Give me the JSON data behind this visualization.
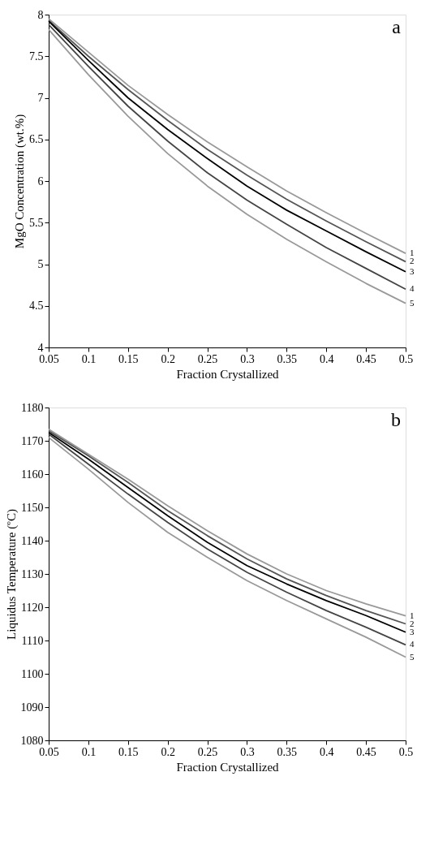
{
  "chart_data": [
    {
      "type": "line",
      "title": "a",
      "xlabel": "Fraction Crystallized",
      "ylabel": "MgO Concentration (wt.%)",
      "x": [
        0.05,
        0.1,
        0.15,
        0.2,
        0.25,
        0.3,
        0.35,
        0.4,
        0.45,
        0.5
      ],
      "series": [
        {
          "name": "1",
          "color": "#999999",
          "values": [
            7.95,
            7.55,
            7.15,
            6.8,
            6.47,
            6.17,
            5.88,
            5.62,
            5.37,
            5.13
          ]
        },
        {
          "name": "2",
          "color": "#555555",
          "values": [
            7.93,
            7.5,
            7.1,
            6.73,
            6.38,
            6.07,
            5.78,
            5.52,
            5.27,
            5.03
          ]
        },
        {
          "name": "3",
          "color": "#000000",
          "values": [
            7.92,
            7.45,
            7.0,
            6.62,
            6.27,
            5.94,
            5.65,
            5.4,
            5.15,
            4.91
          ]
        },
        {
          "name": "4",
          "color": "#444444",
          "values": [
            7.88,
            7.38,
            6.9,
            6.48,
            6.1,
            5.77,
            5.48,
            5.2,
            4.95,
            4.7
          ]
        },
        {
          "name": "5",
          "color": "#999999",
          "values": [
            7.82,
            7.28,
            6.78,
            6.33,
            5.94,
            5.6,
            5.3,
            5.03,
            4.77,
            4.53
          ]
        }
      ],
      "xlim": [
        0.05,
        0.5
      ],
      "xticks": [
        0.05,
        0.1,
        0.15,
        0.2,
        0.25,
        0.3,
        0.35,
        0.4,
        0.45,
        0.5
      ],
      "ylim": [
        4,
        8
      ],
      "yticks": [
        4,
        4.5,
        5,
        5.5,
        6,
        6.5,
        7,
        7.5,
        8
      ],
      "grid": false,
      "legend": false,
      "marker": "none",
      "line_style": "solid"
    },
    {
      "type": "line",
      "title": "b",
      "xlabel": "Fraction Crystallized",
      "ylabel": "Liquidus Temperature (ºC)",
      "x": [
        0.05,
        0.1,
        0.15,
        0.2,
        0.25,
        0.3,
        0.35,
        0.4,
        0.45,
        0.5
      ],
      "series": [
        {
          "name": "1",
          "color": "#999999",
          "values": [
            1173.5,
            1166,
            1158.5,
            1150.5,
            1143,
            1136,
            1130,
            1125,
            1121,
            1117.4
          ]
        },
        {
          "name": "2",
          "color": "#555555",
          "values": [
            1173,
            1165.5,
            1157.5,
            1149,
            1141.5,
            1134.5,
            1128.5,
            1123.5,
            1119,
            1115
          ]
        },
        {
          "name": "3",
          "color": "#000000",
          "values": [
            1172.5,
            1164.5,
            1156,
            1147.5,
            1139.5,
            1132.5,
            1127,
            1122,
            1117.5,
            1112.5
          ]
        },
        {
          "name": "4",
          "color": "#444444",
          "values": [
            1172,
            1163,
            1154,
            1145.5,
            1137.5,
            1130.5,
            1124.5,
            1119,
            1114,
            1108.7
          ]
        },
        {
          "name": "5",
          "color": "#999999",
          "values": [
            1171,
            1161.5,
            1151.5,
            1142.5,
            1135,
            1128,
            1122,
            1116.5,
            1111,
            1105
          ]
        }
      ],
      "xlim": [
        0.05,
        0.5
      ],
      "xticks": [
        0.05,
        0.1,
        0.15,
        0.2,
        0.25,
        0.3,
        0.35,
        0.4,
        0.45,
        0.5
      ],
      "ylim": [
        1080,
        1180
      ],
      "yticks": [
        1080,
        1090,
        1100,
        1110,
        1120,
        1130,
        1140,
        1150,
        1160,
        1170,
        1180
      ],
      "grid": false,
      "legend": false,
      "marker": "none",
      "line_style": "solid"
    }
  ]
}
